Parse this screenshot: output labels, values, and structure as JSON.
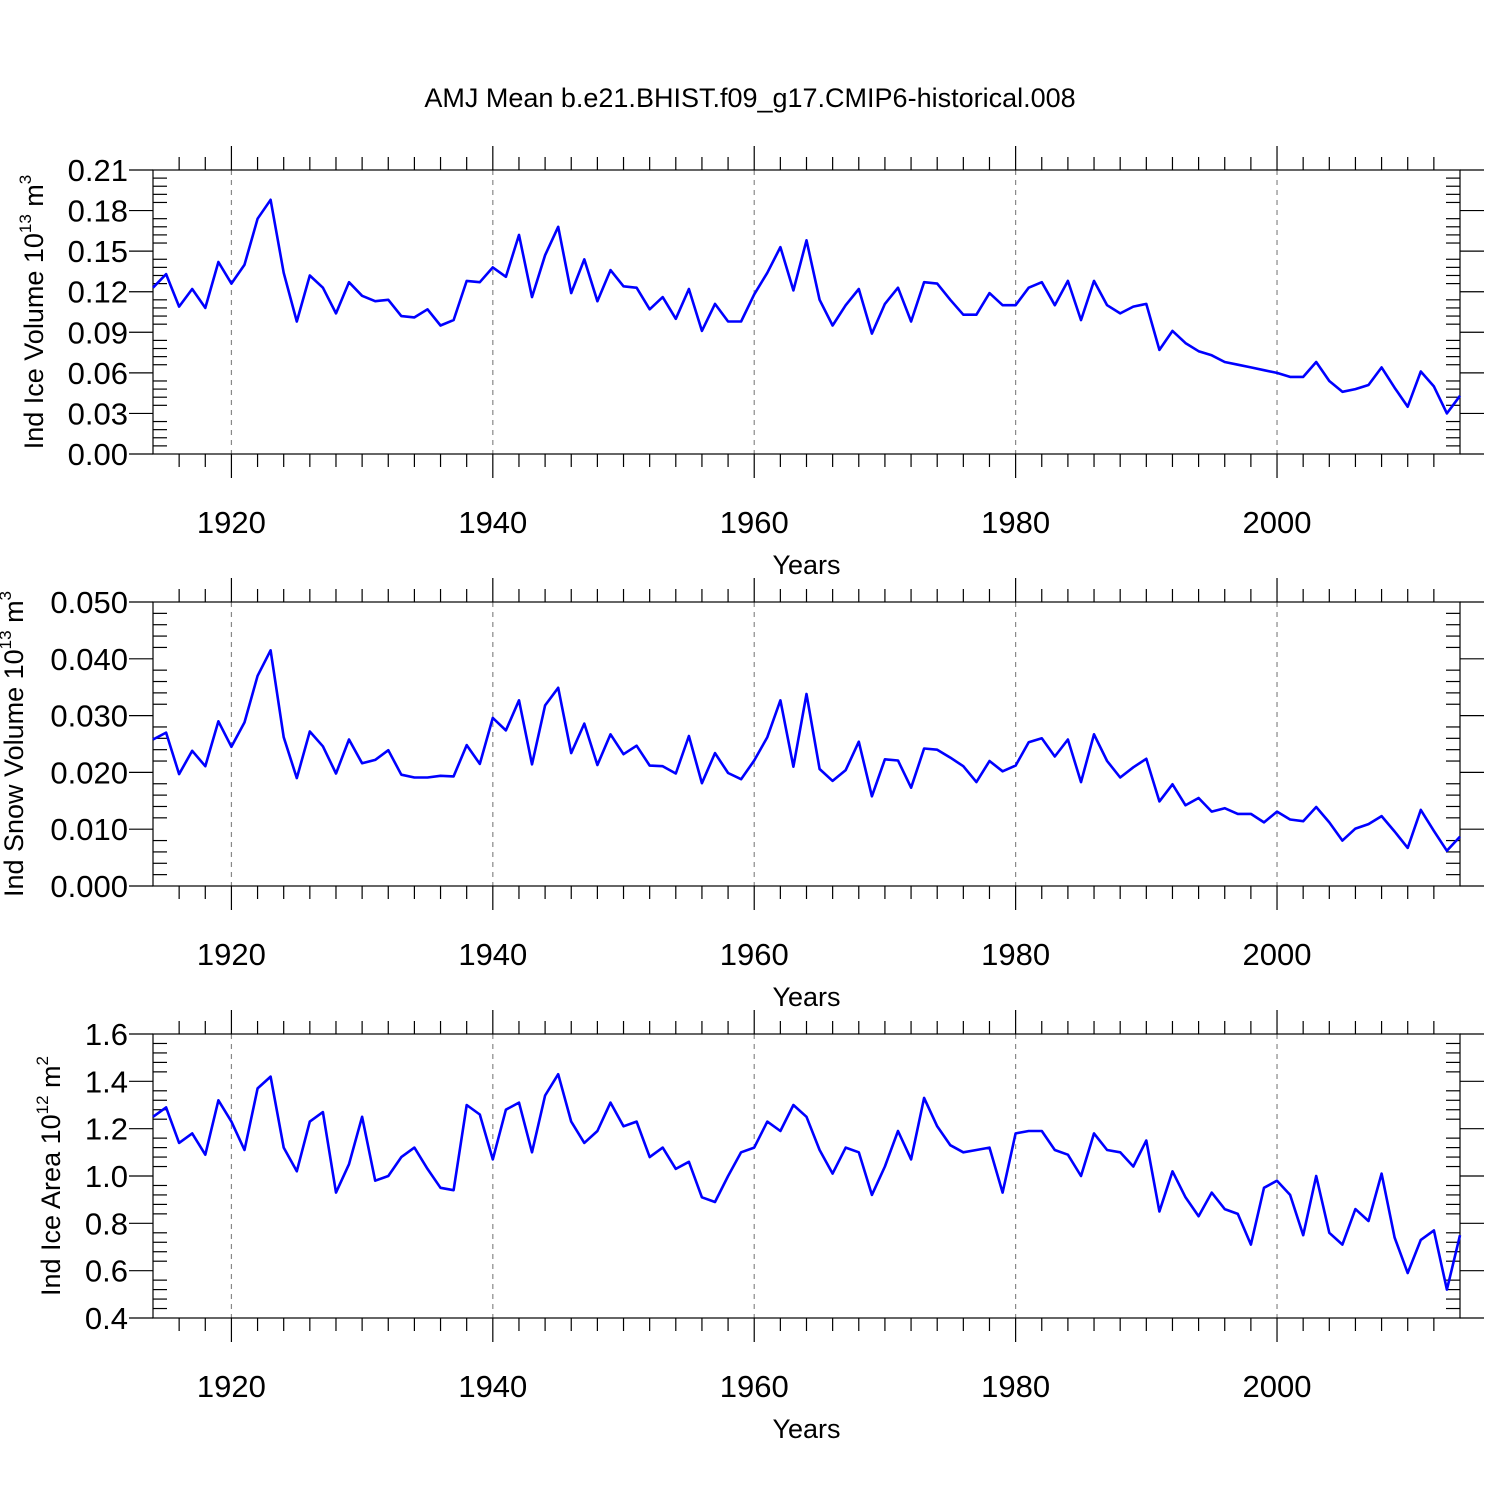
{
  "figure": {
    "title": "AMJ Mean b.e21.BHIST.f09_g17.CMIP6-historical.008"
  },
  "chart_data": [
    {
      "type": "line",
      "ylabel": "Ind Ice Volume 10",
      "ylabel_exp": "13",
      "ylabel_unit": " m",
      "ylabel_unit_exp": "3",
      "xlabel": "Years",
      "xlim": [
        1914,
        2014
      ],
      "ylim": [
        0.0,
        0.21
      ],
      "xticks": [
        "1920",
        "1940",
        "1960",
        "1980",
        "2000"
      ],
      "yticks": [
        "0.00",
        "0.03",
        "0.06",
        "0.09",
        "0.12",
        "0.15",
        "0.18",
        "0.21"
      ],
      "grid": "vertical dashed at labeled x ticks",
      "color": "#0000ff",
      "x_start": 1914,
      "values": [
        0.123,
        0.133,
        0.109,
        0.122,
        0.108,
        0.142,
        0.126,
        0.14,
        0.174,
        0.188,
        0.134,
        0.098,
        0.132,
        0.123,
        0.104,
        0.127,
        0.117,
        0.113,
        0.114,
        0.102,
        0.101,
        0.107,
        0.095,
        0.099,
        0.128,
        0.127,
        0.138,
        0.131,
        0.162,
        0.116,
        0.147,
        0.168,
        0.119,
        0.144,
        0.113,
        0.136,
        0.124,
        0.123,
        0.107,
        0.116,
        0.1,
        0.122,
        0.091,
        0.111,
        0.098,
        0.098,
        0.118,
        0.134,
        0.153,
        0.121,
        0.158,
        0.114,
        0.095,
        0.11,
        0.122,
        0.089,
        0.111,
        0.123,
        0.098,
        0.127,
        0.126,
        0.114,
        0.103,
        0.103,
        0.119,
        0.11,
        0.11,
        0.123,
        0.127,
        0.11,
        0.128,
        0.099,
        0.128,
        0.11,
        0.104,
        0.109,
        0.111,
        0.077,
        0.091,
        0.082,
        0.076,
        0.073,
        0.068,
        0.066,
        0.064,
        0.062,
        0.06,
        0.057,
        0.057,
        0.068,
        0.054,
        0.046,
        0.048,
        0.051,
        0.064,
        0.049,
        0.035,
        0.061,
        0.05,
        0.03,
        0.043
      ]
    },
    {
      "type": "line",
      "ylabel": "Ind Snow Volume 10",
      "ylabel_exp": "13",
      "ylabel_unit": " m",
      "ylabel_unit_exp": "3",
      "xlabel": "Years",
      "xlim": [
        1914,
        2014
      ],
      "ylim": [
        0.0,
        0.05
      ],
      "xticks": [
        "1920",
        "1940",
        "1960",
        "1980",
        "2000"
      ],
      "yticks": [
        "0.000",
        "0.010",
        "0.020",
        "0.030",
        "0.040",
        "0.050"
      ],
      "grid": "vertical dashed at labeled x ticks",
      "color": "#0000ff",
      "x_start": 1914,
      "values": [
        0.0258,
        0.027,
        0.0197,
        0.0238,
        0.0211,
        0.029,
        0.0245,
        0.0288,
        0.037,
        0.0415,
        0.0262,
        0.019,
        0.0272,
        0.0246,
        0.0198,
        0.0258,
        0.0216,
        0.0222,
        0.0239,
        0.0196,
        0.0191,
        0.0191,
        0.0194,
        0.0193,
        0.0248,
        0.0215,
        0.0296,
        0.0274,
        0.0327,
        0.0214,
        0.0318,
        0.0349,
        0.0234,
        0.0286,
        0.0213,
        0.0267,
        0.0232,
        0.0247,
        0.0212,
        0.0211,
        0.0198,
        0.0264,
        0.0181,
        0.0234,
        0.0199,
        0.0188,
        0.0221,
        0.0262,
        0.0327,
        0.021,
        0.0338,
        0.0206,
        0.0185,
        0.0204,
        0.0254,
        0.0158,
        0.0223,
        0.0221,
        0.0173,
        0.0242,
        0.024,
        0.0226,
        0.0211,
        0.0183,
        0.022,
        0.0202,
        0.0212,
        0.0253,
        0.026,
        0.0228,
        0.0258,
        0.0183,
        0.0267,
        0.022,
        0.0191,
        0.0209,
        0.0224,
        0.0149,
        0.0179,
        0.0142,
        0.0155,
        0.0131,
        0.0137,
        0.0127,
        0.0127,
        0.0112,
        0.0131,
        0.0117,
        0.0114,
        0.0139,
        0.0112,
        0.008,
        0.0101,
        0.0109,
        0.0123,
        0.0096,
        0.0067,
        0.0134,
        0.0097,
        0.0062,
        0.0087
      ]
    },
    {
      "type": "line",
      "ylabel": "Ind Ice Area 10",
      "ylabel_exp": "12",
      "ylabel_unit": " m",
      "ylabel_unit_exp": "2",
      "xlabel": "Years",
      "xlim": [
        1914,
        2014
      ],
      "ylim": [
        0.4,
        1.6
      ],
      "xticks": [
        "1920",
        "1940",
        "1960",
        "1980",
        "2000"
      ],
      "yticks": [
        "0.4",
        "0.6",
        "0.8",
        "1.0",
        "1.2",
        "1.4",
        "1.6"
      ],
      "grid": "vertical dashed at labeled x ticks",
      "color": "#0000ff",
      "x_start": 1914,
      "values": [
        1.25,
        1.29,
        1.14,
        1.18,
        1.09,
        1.32,
        1.23,
        1.11,
        1.37,
        1.42,
        1.12,
        1.02,
        1.23,
        1.27,
        0.93,
        1.05,
        1.25,
        0.98,
        1.0,
        1.08,
        1.12,
        1.03,
        0.95,
        0.94,
        1.3,
        1.26,
        1.07,
        1.28,
        1.31,
        1.1,
        1.34,
        1.43,
        1.23,
        1.14,
        1.19,
        1.31,
        1.21,
        1.23,
        1.08,
        1.12,
        1.03,
        1.06,
        0.91,
        0.89,
        1.0,
        1.1,
        1.12,
        1.23,
        1.19,
        1.3,
        1.25,
        1.11,
        1.01,
        1.12,
        1.1,
        0.92,
        1.04,
        1.19,
        1.07,
        1.33,
        1.21,
        1.13,
        1.1,
        1.11,
        1.12,
        0.93,
        1.18,
        1.19,
        1.19,
        1.11,
        1.09,
        1.0,
        1.18,
        1.11,
        1.1,
        1.04,
        1.15,
        0.85,
        1.02,
        0.91,
        0.83,
        0.93,
        0.86,
        0.84,
        0.71,
        0.95,
        0.98,
        0.92,
        0.75,
        1.0,
        0.76,
        0.71,
        0.86,
        0.81,
        1.01,
        0.74,
        0.59,
        0.73,
        0.77,
        0.52,
        0.75
      ]
    }
  ]
}
